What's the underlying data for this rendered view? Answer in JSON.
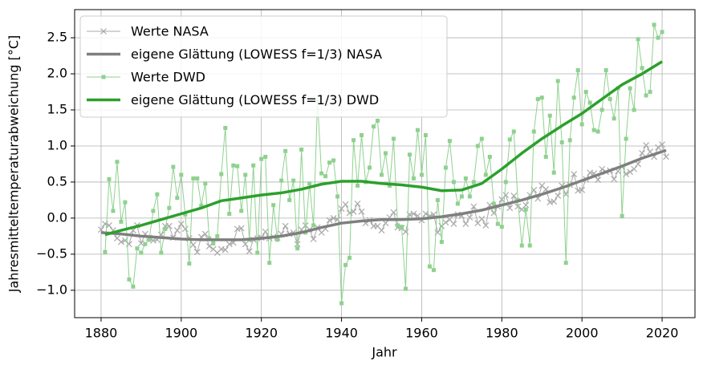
{
  "chart_data": {
    "type": "line",
    "xlabel": "Jahr",
    "ylabel": "Jahresmitteltemperaturabweichung [°C]",
    "xlim": [
      1873.4,
      2028.2
    ],
    "ylim": [
      -1.38,
      2.89
    ],
    "xticks": [
      1880,
      1900,
      1920,
      1940,
      1960,
      1980,
      2000,
      2020
    ],
    "yticks": [
      {
        "value": -1.0,
        "label": "−1.0"
      },
      {
        "value": -0.5,
        "label": "−0.5"
      },
      {
        "value": 0.0,
        "label": "0.0"
      },
      0.5,
      {
        "value": 1.0,
        "label": "1.0"
      },
      1.5,
      {
        "value": 2.0,
        "label": "2.0"
      },
      2.5
    ],
    "grid": true,
    "legend": "upper left",
    "series": [
      {
        "name": "Werte NASA",
        "color": "#a9a9a9",
        "marker": "x",
        "linewidth": 1,
        "x": [
          1880,
          1881,
          1882,
          1883,
          1884,
          1885,
          1886,
          1887,
          1888,
          1889,
          1890,
          1891,
          1892,
          1893,
          1894,
          1895,
          1896,
          1897,
          1898,
          1899,
          1900,
          1901,
          1902,
          1903,
          1904,
          1905,
          1906,
          1907,
          1908,
          1909,
          1910,
          1911,
          1912,
          1913,
          1914,
          1915,
          1916,
          1917,
          1918,
          1919,
          1920,
          1921,
          1922,
          1923,
          1924,
          1925,
          1926,
          1927,
          1928,
          1929,
          1930,
          1931,
          1932,
          1933,
          1934,
          1935,
          1936,
          1937,
          1938,
          1939,
          1940,
          1941,
          1942,
          1943,
          1944,
          1945,
          1946,
          1947,
          1948,
          1949,
          1950,
          1951,
          1952,
          1953,
          1954,
          1955,
          1956,
          1957,
          1958,
          1959,
          1960,
          1961,
          1962,
          1963,
          1964,
          1965,
          1966,
          1967,
          1968,
          1969,
          1970,
          1971,
          1972,
          1973,
          1974,
          1975,
          1976,
          1977,
          1978,
          1979,
          1980,
          1981,
          1982,
          1983,
          1984,
          1985,
          1986,
          1987,
          1988,
          1989,
          1990,
          1991,
          1992,
          1993,
          1994,
          1995,
          1996,
          1997,
          1998,
          1999,
          2000,
          2001,
          2002,
          2003,
          2004,
          2005,
          2006,
          2007,
          2008,
          2009,
          2010,
          2011,
          2012,
          2013,
          2014,
          2015,
          2016,
          2017,
          2018,
          2019,
          2020,
          2021
        ],
        "values": [
          -0.16,
          -0.08,
          -0.1,
          -0.17,
          -0.28,
          -0.33,
          -0.31,
          -0.36,
          -0.17,
          -0.1,
          -0.35,
          -0.22,
          -0.27,
          -0.31,
          -0.3,
          -0.23,
          -0.11,
          -0.11,
          -0.27,
          -0.17,
          -0.08,
          -0.15,
          -0.28,
          -0.37,
          -0.47,
          -0.26,
          -0.22,
          -0.39,
          -0.43,
          -0.48,
          -0.43,
          -0.44,
          -0.36,
          -0.34,
          -0.15,
          -0.14,
          -0.36,
          -0.46,
          -0.3,
          -0.28,
          -0.27,
          -0.19,
          -0.28,
          -0.26,
          -0.27,
          -0.22,
          -0.11,
          -0.22,
          -0.2,
          -0.36,
          -0.16,
          -0.1,
          -0.16,
          -0.29,
          -0.13,
          -0.2,
          -0.15,
          -0.03,
          0.0,
          -0.02,
          0.13,
          0.19,
          0.07,
          0.09,
          0.2,
          0.09,
          -0.07,
          -0.03,
          -0.11,
          -0.11,
          -0.17,
          -0.07,
          0.01,
          0.08,
          -0.13,
          -0.14,
          -0.19,
          0.05,
          0.06,
          0.03,
          -0.03,
          0.06,
          0.03,
          0.05,
          -0.2,
          -0.11,
          -0.06,
          -0.02,
          -0.08,
          0.05,
          0.03,
          -0.08,
          0.01,
          0.16,
          -0.07,
          -0.01,
          -0.1,
          0.18,
          0.07,
          0.16,
          0.26,
          0.32,
          0.14,
          0.31,
          0.16,
          0.12,
          0.18,
          0.32,
          0.39,
          0.27,
          0.45,
          0.4,
          0.22,
          0.23,
          0.31,
          0.45,
          0.33,
          0.46,
          0.61,
          0.38,
          0.39,
          0.54,
          0.63,
          0.62,
          0.53,
          0.68,
          0.64,
          0.66,
          0.54,
          0.65,
          0.72,
          0.61,
          0.64,
          0.68,
          0.75,
          0.9,
          1.01,
          0.92,
          0.85,
          0.98,
          1.02,
          0.85
        ]
      },
      {
        "name": "eigene Glättung (LOWESS f=1/3) NASA",
        "color": "#7f7f7f",
        "linewidth": 3.5,
        "x": [
          1880,
          1885,
          1890,
          1895,
          1900,
          1905,
          1910,
          1915,
          1920,
          1925,
          1930,
          1935,
          1940,
          1945,
          1950,
          1955,
          1960,
          1965,
          1970,
          1975,
          1980,
          1985,
          1990,
          1995,
          2000,
          2005,
          2010,
          2015,
          2021
        ],
        "values": [
          -0.2,
          -0.22,
          -0.25,
          -0.27,
          -0.29,
          -0.3,
          -0.3,
          -0.3,
          -0.28,
          -0.25,
          -0.2,
          -0.13,
          -0.07,
          -0.04,
          -0.02,
          -0.02,
          -0.01,
          0.02,
          0.06,
          0.11,
          0.18,
          0.25,
          0.33,
          0.42,
          0.52,
          0.62,
          0.72,
          0.83,
          0.94
        ]
      },
      {
        "name": "Werte DWD",
        "color": "#8fd18f",
        "marker": "s",
        "linewidth": 1,
        "x": [
          1881,
          1882,
          1883,
          1884,
          1885,
          1886,
          1887,
          1888,
          1889,
          1890,
          1891,
          1892,
          1893,
          1894,
          1895,
          1896,
          1897,
          1898,
          1899,
          1900,
          1901,
          1902,
          1903,
          1904,
          1905,
          1906,
          1907,
          1908,
          1909,
          1910,
          1911,
          1912,
          1913,
          1914,
          1915,
          1916,
          1917,
          1918,
          1919,
          1920,
          1921,
          1922,
          1923,
          1924,
          1925,
          1926,
          1927,
          1928,
          1929,
          1930,
          1931,
          1932,
          1933,
          1934,
          1935,
          1936,
          1937,
          1938,
          1939,
          1940,
          1941,
          1942,
          1943,
          1944,
          1945,
          1946,
          1947,
          1948,
          1949,
          1950,
          1951,
          1952,
          1953,
          1954,
          1955,
          1956,
          1957,
          1958,
          1959,
          1960,
          1961,
          1962,
          1963,
          1964,
          1965,
          1966,
          1967,
          1968,
          1969,
          1970,
          1971,
          1972,
          1973,
          1974,
          1975,
          1976,
          1977,
          1978,
          1979,
          1980,
          1981,
          1982,
          1983,
          1984,
          1985,
          1986,
          1987,
          1988,
          1989,
          1990,
          1991,
          1992,
          1993,
          1994,
          1995,
          1996,
          1997,
          1998,
          1999,
          2000,
          2001,
          2002,
          2003,
          2004,
          2005,
          2006,
          2007,
          2008,
          2009,
          2010,
          2011,
          2012,
          2013,
          2014,
          2015,
          2016,
          2017,
          2018,
          2019,
          2020
        ],
        "values": [
          -0.47,
          0.54,
          0.1,
          0.78,
          -0.05,
          0.22,
          -0.85,
          -0.95,
          -0.42,
          -0.48,
          -0.36,
          -0.3,
          0.1,
          0.33,
          -0.48,
          -0.15,
          0.14,
          0.71,
          0.28,
          0.6,
          0.05,
          -0.63,
          0.55,
          0.55,
          0.17,
          0.48,
          -0.28,
          -0.35,
          -0.25,
          0.61,
          1.25,
          0.06,
          0.73,
          0.72,
          0.1,
          0.6,
          -0.3,
          0.73,
          -0.48,
          0.82,
          0.85,
          -0.62,
          0.18,
          -0.3,
          0.52,
          0.93,
          0.25,
          0.52,
          -0.42,
          0.95,
          -0.2,
          0.48,
          -0.1,
          1.62,
          0.62,
          0.58,
          0.77,
          0.8,
          0.3,
          -1.18,
          -0.65,
          -0.55,
          1.08,
          0.45,
          1.15,
          0.5,
          0.7,
          1.27,
          1.35,
          0.6,
          0.9,
          0.45,
          1.1,
          -0.1,
          -0.12,
          -0.98,
          0.88,
          0.55,
          1.22,
          0.6,
          1.15,
          -0.67,
          -0.72,
          0.25,
          -0.33,
          0.7,
          1.07,
          0.5,
          0.2,
          0.3,
          0.55,
          0.3,
          0.5,
          1.0,
          1.1,
          0.6,
          0.85,
          0.2,
          -0.08,
          -0.12,
          0.5,
          1.09,
          1.2,
          0.25,
          -0.38,
          0.12,
          -0.38,
          1.2,
          1.65,
          1.67,
          0.85,
          1.42,
          0.63,
          1.9,
          1.05,
          -0.62,
          1.08,
          1.67,
          2.05,
          1.3,
          1.75,
          1.6,
          1.22,
          1.2,
          1.5,
          2.05,
          1.65,
          1.38,
          1.8,
          0.03,
          1.1,
          1.8,
          1.5,
          2.48,
          2.08,
          1.7,
          1.75,
          2.68,
          2.5,
          2.58
        ]
      },
      {
        "name": "eigene Glättung (LOWESS f=1/3) DWD",
        "color": "#2ca02c",
        "linewidth": 3.5,
        "x": [
          1881,
          1885,
          1890,
          1895,
          1900,
          1905,
          1910,
          1915,
          1920,
          1925,
          1930,
          1935,
          1940,
          1945,
          1950,
          1955,
          1960,
          1965,
          1970,
          1975,
          1980,
          1985,
          1990,
          1995,
          2000,
          2005,
          2010,
          2015,
          2020
        ],
        "values": [
          -0.23,
          -0.17,
          -0.1,
          -0.02,
          0.06,
          0.14,
          0.24,
          0.28,
          0.32,
          0.35,
          0.4,
          0.47,
          0.51,
          0.51,
          0.48,
          0.46,
          0.43,
          0.38,
          0.39,
          0.48,
          0.68,
          0.9,
          1.1,
          1.28,
          1.45,
          1.65,
          1.85,
          2.0,
          2.17
        ]
      }
    ]
  }
}
